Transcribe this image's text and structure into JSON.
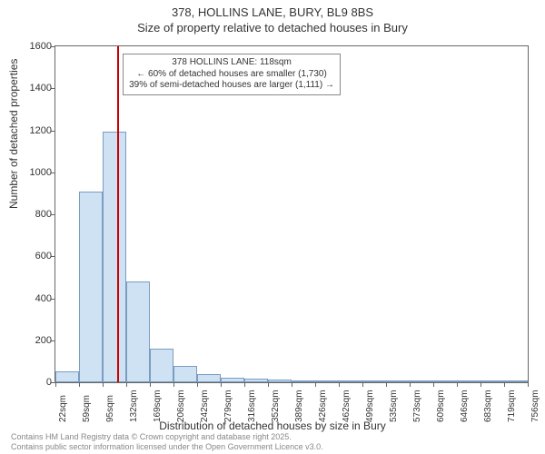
{
  "title_line1": "378, HOLLINS LANE, BURY, BL9 8BS",
  "title_line2": "Size of property relative to detached houses in Bury",
  "ylabel": "Number of detached properties",
  "xlabel": "Distribution of detached houses by size in Bury",
  "footer_line1": "Contains HM Land Registry data © Crown copyright and database right 2025.",
  "footer_line2": "Contains public sector information licensed under the Open Government Licence v3.0.",
  "chart": {
    "type": "histogram",
    "ylim": [
      0,
      1600
    ],
    "yticks": [
      0,
      200,
      400,
      600,
      800,
      1000,
      1200,
      1400,
      1600
    ],
    "xticks": [
      "22sqm",
      "59sqm",
      "95sqm",
      "132sqm",
      "169sqm",
      "206sqm",
      "242sqm",
      "279sqm",
      "316sqm",
      "352sqm",
      "389sqm",
      "426sqm",
      "462sqm",
      "499sqm",
      "535sqm",
      "573sqm",
      "609sqm",
      "646sqm",
      "683sqm",
      "719sqm",
      "756sqm"
    ],
    "bars": [
      50,
      910,
      1195,
      480,
      160,
      80,
      40,
      20,
      18,
      12,
      8,
      5,
      3,
      2,
      2,
      1,
      1,
      1,
      1,
      1
    ],
    "bar_fill": "#cfe2f3",
    "bar_border": "#7b9cc2",
    "background_color": "#ffffff",
    "axis_color": "#666666",
    "marker": {
      "position_bin": 2.62,
      "color": "#cc0000",
      "lines": [
        "378 HOLLINS LANE: 118sqm",
        "← 60% of detached houses are smaller (1,730)",
        "39% of semi-detached houses are larger (1,111) →"
      ]
    },
    "title_fontsize": 13,
    "label_fontsize": 12,
    "tick_fontsize": 11,
    "xtick_fontsize": 10,
    "annotation_fontsize": 10
  }
}
